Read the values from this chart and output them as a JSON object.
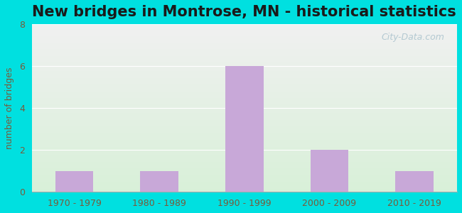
{
  "title": "New bridges in Montrose, MN - historical statistics",
  "categories": [
    "1970 - 1979",
    "1980 - 1989",
    "1990 - 1999",
    "2000 - 2009",
    "2010 - 2019"
  ],
  "values": [
    1,
    1,
    6,
    2,
    1
  ],
  "bar_color": "#c8a8d8",
  "ylabel": "number of bridges",
  "ylim": [
    0,
    8
  ],
  "yticks": [
    0,
    2,
    4,
    6,
    8
  ],
  "background_outer": "#00e0e0",
  "background_inner_top": "#f0f0f0",
  "background_inner_bottom": "#d8f0d8",
  "title_fontsize": 15,
  "axis_label_color": "#7a5a3a",
  "tick_color": "#7a5a3a",
  "watermark": "City-Data.com"
}
